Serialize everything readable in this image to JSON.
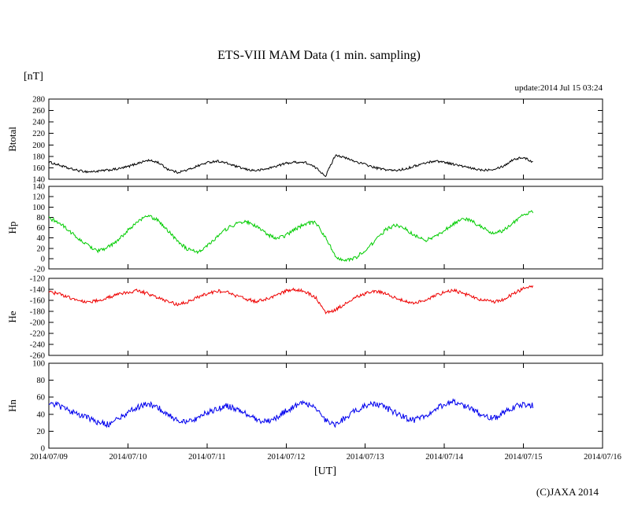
{
  "page": {
    "title": "ETS-VIII MAM Data (1 min. sampling)",
    "unit_label": "[nT]",
    "update_label": "update:2014 Jul 15 03:24",
    "xaxis_label": "[UT]",
    "copyright": "(C)JAXA 2014"
  },
  "chart_data": {
    "type": "line",
    "title": "ETS-VIII MAM Data (1 min. sampling)",
    "xlabel": "[UT]",
    "ylabel": "[nT]",
    "grid": false,
    "legend": "none",
    "x_tick_labels": [
      "2014/07/09",
      "2014/07/10",
      "2014/07/11",
      "2014/07/12",
      "2014/07/13",
      "2014/07/14",
      "2014/07/15",
      "2014/07/16"
    ],
    "x_range_days": [
      0,
      7
    ],
    "x_days": [
      0,
      0.125,
      0.25,
      0.375,
      0.5,
      0.625,
      0.75,
      0.875,
      1,
      1.125,
      1.25,
      1.375,
      1.5,
      1.625,
      1.75,
      1.875,
      2,
      2.125,
      2.25,
      2.375,
      2.5,
      2.625,
      2.75,
      2.875,
      3,
      3.125,
      3.25,
      3.375,
      3.5,
      3.625,
      3.75,
      3.875,
      4,
      4.125,
      4.25,
      4.375,
      4.5,
      4.625,
      4.75,
      4.875,
      5,
      5.125,
      5.25,
      5.375,
      5.5,
      5.625,
      5.75,
      5.875,
      6,
      6.125
    ],
    "panels": [
      {
        "name": "Btotal",
        "color": "#000000",
        "ylim": [
          140,
          280
        ],
        "ytick_step": 20,
        "noise": 2,
        "values": [
          170,
          165,
          159,
          155,
          153,
          154,
          156,
          158,
          162,
          168,
          173,
          170,
          158,
          152,
          156,
          163,
          169,
          172,
          168,
          162,
          157,
          155,
          158,
          163,
          168,
          170,
          169,
          160,
          146,
          183,
          177,
          171,
          166,
          160,
          157,
          155,
          158,
          163,
          168,
          172,
          170,
          166,
          162,
          158,
          156,
          158,
          163,
          175,
          178,
          170
        ]
      },
      {
        "name": "Hp",
        "color": "#00cc00",
        "ylim": [
          -20,
          140
        ],
        "ytick_step": 20,
        "noise": 3.5,
        "values": [
          78,
          70,
          55,
          38,
          25,
          15,
          22,
          35,
          55,
          72,
          83,
          75,
          55,
          35,
          18,
          12,
          25,
          42,
          58,
          68,
          72,
          62,
          48,
          38,
          45,
          58,
          68,
          70,
          40,
          5,
          -5,
          2,
          15,
          35,
          55,
          65,
          58,
          45,
          35,
          42,
          55,
          68,
          78,
          70,
          58,
          48,
          55,
          70,
          85,
          92
        ]
      },
      {
        "name": "He",
        "color": "#ee0000",
        "ylim": [
          -260,
          -120
        ],
        "ytick_step": 20,
        "noise": 3,
        "values": [
          -145,
          -148,
          -155,
          -160,
          -163,
          -160,
          -155,
          -150,
          -145,
          -142,
          -148,
          -155,
          -162,
          -168,
          -163,
          -155,
          -148,
          -143,
          -145,
          -152,
          -158,
          -162,
          -158,
          -150,
          -143,
          -140,
          -145,
          -155,
          -182,
          -178,
          -165,
          -155,
          -148,
          -143,
          -147,
          -155,
          -162,
          -165,
          -160,
          -152,
          -145,
          -142,
          -148,
          -155,
          -160,
          -163,
          -158,
          -148,
          -138,
          -135
        ]
      },
      {
        "name": "Hn",
        "color": "#0000ee",
        "ylim": [
          0,
          100
        ],
        "ytick_step": 20,
        "noise": 3.5,
        "values": [
          55,
          50,
          44,
          40,
          36,
          30,
          28,
          35,
          42,
          48,
          52,
          48,
          40,
          33,
          30,
          35,
          42,
          46,
          50,
          46,
          40,
          34,
          31,
          36,
          44,
          50,
          53,
          48,
          32,
          28,
          36,
          44,
          50,
          53,
          48,
          42,
          36,
          33,
          38,
          45,
          52,
          55,
          50,
          44,
          38,
          35,
          42,
          48,
          52,
          50
        ]
      }
    ]
  }
}
